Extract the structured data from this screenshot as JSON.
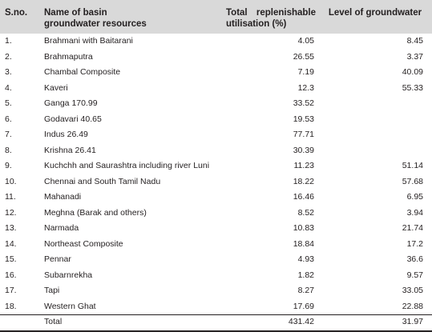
{
  "table": {
    "headers": {
      "sno": "S.no.",
      "basin_line1": "Name of basin",
      "basin_line2": "groundwater resources",
      "repl_line1a": "Total",
      "repl_line1b": "replenishable",
      "repl_line2": "utilisation (%)",
      "level": "Level of groundwater"
    },
    "rows": [
      {
        "sno": "1.",
        "name": "Brahmani with Baitarani",
        "repl": "4.05",
        "level": "8.45"
      },
      {
        "sno": "2.",
        "name": "Brahmaputra",
        "repl": "26.55",
        "level": "3.37"
      },
      {
        "sno": "3.",
        "name": "Chambal Composite",
        "repl": "7.19",
        "level": "40.09"
      },
      {
        "sno": "4.",
        "name": "Kaveri",
        "repl": "12.3",
        "level": "55.33"
      },
      {
        "sno": "5.",
        "name": "Ganga 170.99",
        "repl": "33.52",
        "level": ""
      },
      {
        "sno": "6.",
        "name": "Godavari 40.65",
        "repl": "19.53",
        "level": ""
      },
      {
        "sno": "7.",
        "name": "Indus 26.49",
        "repl": "77.71",
        "level": ""
      },
      {
        "sno": "8.",
        "name": "Krishna 26.41",
        "repl": "30.39",
        "level": ""
      },
      {
        "sno": "9.",
        "name": "Kuchchh and Saurashtra including river Luni",
        "repl": "11.23",
        "level": "51.14"
      },
      {
        "sno": "10.",
        "name": "Chennai and South Tamil Nadu",
        "repl": "18.22",
        "level": "57.68"
      },
      {
        "sno": "11.",
        "name": "Mahanadi",
        "repl": "16.46",
        "level": "6.95"
      },
      {
        "sno": "12.",
        "name": "Meghna (Barak and others)",
        "repl": "8.52",
        "level": "3.94"
      },
      {
        "sno": "13.",
        "name": "Narmada",
        "repl": "10.83",
        "level": "21.74"
      },
      {
        "sno": "14.",
        "name": "Northeast Composite",
        "repl": "18.84",
        "level": "17.2"
      },
      {
        "sno": "15.",
        "name": "Pennar",
        "repl": "4.93",
        "level": "36.6"
      },
      {
        "sno": "16.",
        "name": "Subarnrekha",
        "repl": "1.82",
        "level": "9.57"
      },
      {
        "sno": "17.",
        "name": "Tapi",
        "repl": "8.27",
        "level": "33.05"
      },
      {
        "sno": "18.",
        "name": "Western Ghat",
        "repl": "17.69",
        "level": "22.88"
      }
    ],
    "total": {
      "sno": "",
      "name": "Total",
      "repl": "431.42",
      "level": "31.97"
    }
  }
}
